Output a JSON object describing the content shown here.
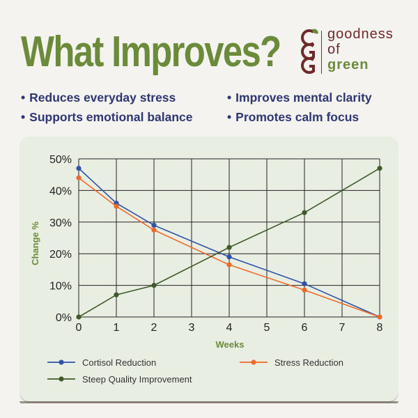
{
  "title": "What Improves?",
  "brand": {
    "line1": "goodness",
    "line2": "of",
    "line3": "green",
    "colors": {
      "maroon": "#6e2a2a",
      "green": "#6b8b3a"
    }
  },
  "bullets": [
    "Reduces everyday stress",
    "Improves mental clarity",
    "Supports emotional balance",
    "Promotes calm focus"
  ],
  "chart_data": {
    "type": "line",
    "xlabel": "Weeks",
    "ylabel": "Change %",
    "xlim": [
      0,
      8
    ],
    "ylim": [
      0,
      50
    ],
    "x_ticks": [
      "0",
      "1",
      "2",
      "3",
      "4",
      "5",
      "6",
      "7",
      "8"
    ],
    "y_ticks": [
      "0%",
      "10%",
      "20%",
      "30%",
      "40%",
      "50%"
    ],
    "grid": true,
    "legend_position": "bottom",
    "series": [
      {
        "name": "Cortisol Reduction",
        "color": "#2f52a8",
        "x": [
          0,
          1,
          2,
          4,
          6,
          8
        ],
        "y": [
          47,
          36,
          29,
          19,
          10.5,
          0
        ]
      },
      {
        "name": "Stress Reduction",
        "color": "#ee6a2a",
        "x": [
          0,
          1,
          2,
          4,
          6,
          8
        ],
        "y": [
          44,
          35,
          27.5,
          16.5,
          8.5,
          0
        ]
      },
      {
        "name": "Steep Quality Improvement",
        "color": "#3f5a2a",
        "x": [
          0,
          1,
          2,
          4,
          6,
          8
        ],
        "y": [
          0,
          7,
          10,
          22,
          33,
          47
        ]
      }
    ]
  }
}
